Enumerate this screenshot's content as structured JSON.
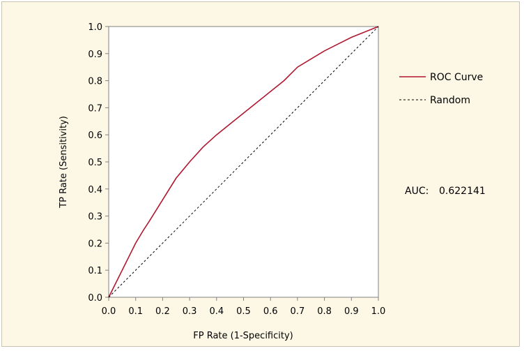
{
  "colors": {
    "frame_background": "#fdf8e5",
    "plot_background": "#ffffff",
    "roc_curve": "#b0172f",
    "random_line": "#000000"
  },
  "chart_data": {
    "type": "line",
    "title": "",
    "xlabel": "FP Rate (1-Specificity)",
    "ylabel": "TP Rate (Sensitivity)",
    "xlim": [
      0,
      1
    ],
    "ylim": [
      0,
      1
    ],
    "x_ticks": [
      "0.0",
      "0.1",
      "0.2",
      "0.3",
      "0.4",
      "0.5",
      "0.6",
      "0.7",
      "0.8",
      "0.9",
      "1.0"
    ],
    "y_ticks": [
      "0.0",
      "0.1",
      "0.2",
      "0.3",
      "0.4",
      "0.5",
      "0.6",
      "0.7",
      "0.8",
      "0.9",
      "1.0"
    ],
    "grid": false,
    "legend_position": "right",
    "series": [
      {
        "name": "ROC Curve",
        "style": "solid",
        "x": [
          0,
          0.01,
          0.02,
          0.03,
          0.05,
          0.07,
          0.1,
          0.13,
          0.15,
          0.2,
          0.25,
          0.3,
          0.35,
          0.4,
          0.45,
          0.5,
          0.55,
          0.6,
          0.65,
          0.7,
          0.75,
          0.8,
          0.85,
          0.9,
          0.95,
          1.0
        ],
        "y": [
          0,
          0.02,
          0.04,
          0.06,
          0.1,
          0.14,
          0.2,
          0.25,
          0.28,
          0.36,
          0.44,
          0.5,
          0.555,
          0.6,
          0.64,
          0.68,
          0.72,
          0.76,
          0.8,
          0.85,
          0.88,
          0.91,
          0.935,
          0.96,
          0.98,
          1.0
        ]
      },
      {
        "name": "Random",
        "style": "dashed",
        "x": [
          0,
          1
        ],
        "y": [
          0,
          1
        ]
      }
    ],
    "annotations": {
      "auc_label": "AUC:",
      "auc_value": "0.622141"
    }
  }
}
